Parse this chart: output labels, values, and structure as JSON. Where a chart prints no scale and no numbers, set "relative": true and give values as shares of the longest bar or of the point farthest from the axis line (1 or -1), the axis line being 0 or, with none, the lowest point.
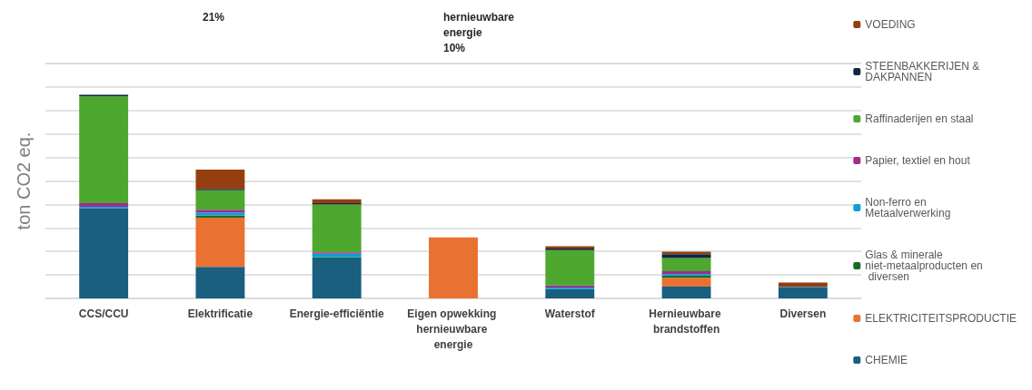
{
  "chart_data": {
    "type": "bar",
    "stacked": true,
    "relative": true,
    "grid": "y",
    "legend": "right",
    "ylabel": "ton CO2 eq.",
    "annotations": [
      "21%",
      "hernieuwbare energie 10%"
    ],
    "categories": [
      "CCS/CCU",
      "Elektrificatie",
      "Energie-efficiëntie",
      "Eigen opwekking hernieuwbare energie",
      "Waterstof",
      "Hernieuwbare brandstoffen",
      "Diversen"
    ],
    "series": [
      {
        "name": "CHEMIE",
        "color": "#1a5e80",
        "values": [
          0.443,
          0.155,
          0.196,
          0,
          0.046,
          0.058,
          0.053
        ]
      },
      {
        "name": "ELEKTRICITEITSPRODUCTIE",
        "color": "#e97132",
        "values": [
          0,
          0.242,
          0,
          0.3,
          0,
          0.043,
          0
        ]
      },
      {
        "name": "Glas & minerale niet-metaalproducten en diversen",
        "color": "#196b24",
        "values": [
          0,
          0.011,
          0.006,
          0,
          0,
          0.011,
          0
        ]
      },
      {
        "name": "Non-ferro en Metaalverwerking",
        "color": "#0f9ed5",
        "values": [
          0.007,
          0.014,
          0.017,
          0,
          0.007,
          0.008,
          0.004
        ]
      },
      {
        "name": "Papier, textiel en hout",
        "color": "#a02b93",
        "values": [
          0.018,
          0.014,
          0.007,
          0,
          0.011,
          0.014,
          0
        ]
      },
      {
        "name": "Raffinaderijen en staal",
        "color": "#4ea72e",
        "values": [
          0.524,
          0.095,
          0.235,
          0,
          0.173,
          0.064,
          0
        ]
      },
      {
        "name": "STEENBAKKERIJEN & DAKPANNEN",
        "color": "#0e2841",
        "values": [
          0.008,
          0.007,
          0.007,
          0,
          0.008,
          0.019,
          0
        ]
      },
      {
        "name": "VOEDING",
        "color": "#953f10",
        "values": [
          0,
          0.095,
          0.019,
          0,
          0.011,
          0.012,
          0.021
        ]
      }
    ]
  }
}
